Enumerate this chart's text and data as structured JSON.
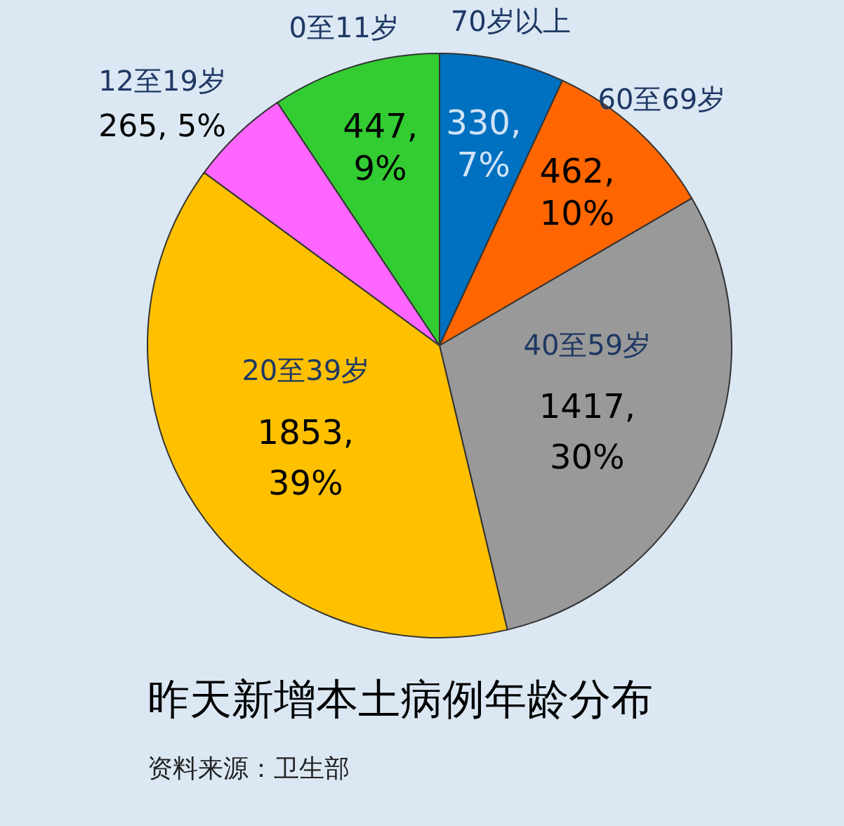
{
  "chart_data": {
    "type": "pie",
    "title": "昨天新增本土病例年龄分布",
    "categories": [
      "70岁以上",
      "60至69岁",
      "40至59岁",
      "20至39岁",
      "12至19岁",
      "0至11岁"
    ],
    "values": [
      330,
      462,
      1417,
      1853,
      265,
      447
    ],
    "value_labels": [
      "330, 7%",
      "462, 10%",
      "1417, 30%",
      "1853, 39%",
      "265, 5%",
      "447, 9%"
    ],
    "colors": [
      "#0070c0",
      "#ff6600",
      "#999999",
      "#ffc000",
      "#ff66ff",
      "#33cc33"
    ],
    "annotations": [
      "资料来源：卫生部"
    ]
  }
}
